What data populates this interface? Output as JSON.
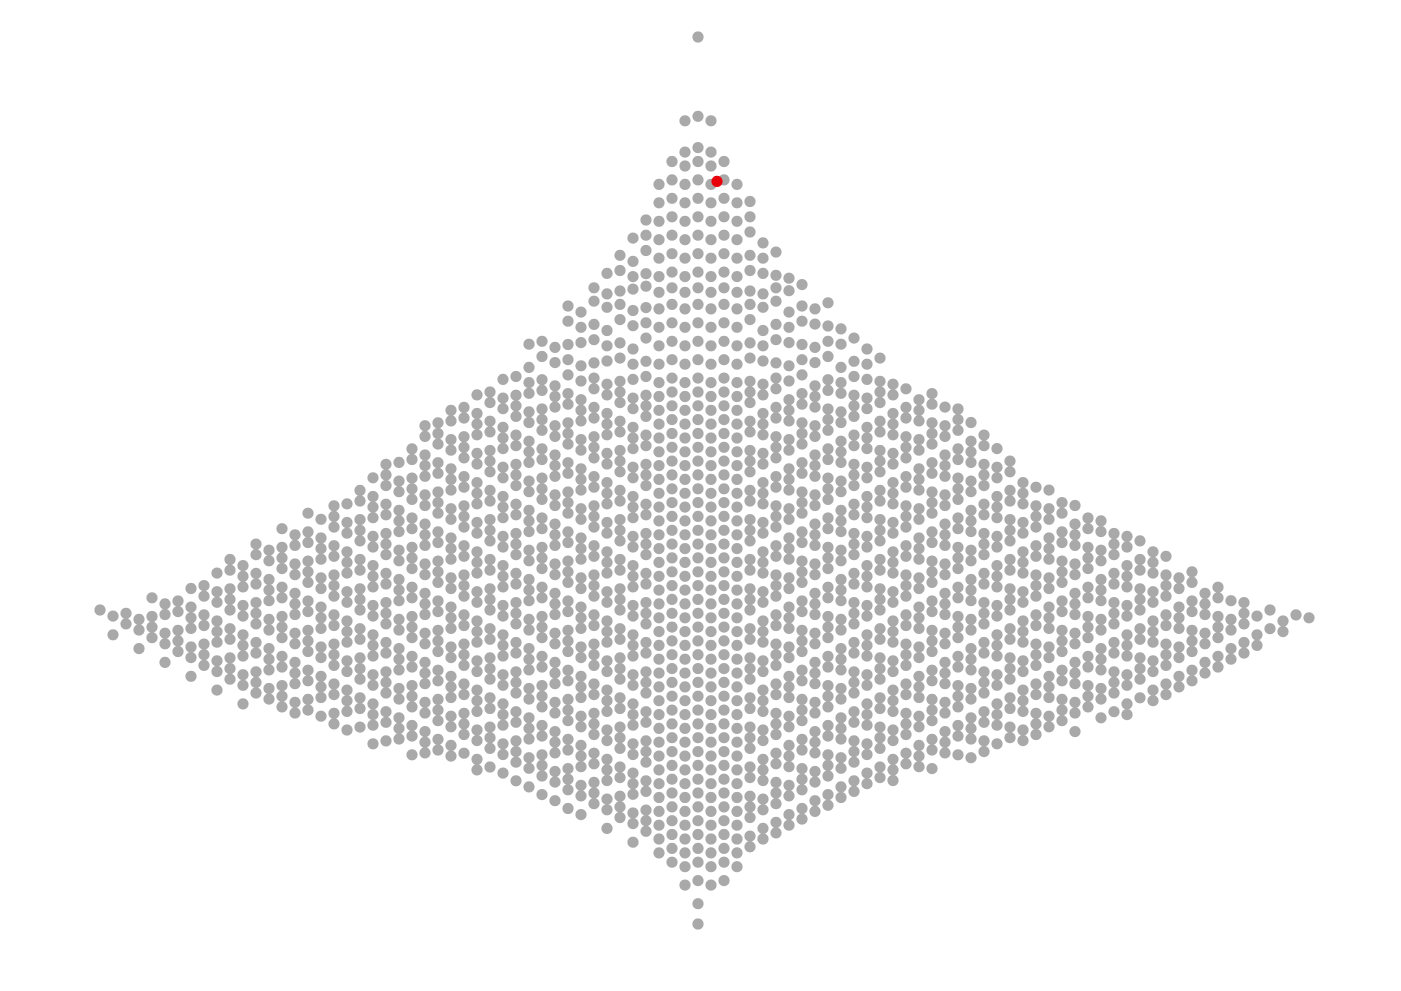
{
  "chart_data": {
    "type": "scatter",
    "subtype": "beeswarm",
    "title": "",
    "xlabel": "",
    "ylabel": "",
    "axes_visible": false,
    "grid": false,
    "legend": "none",
    "colors": {
      "points": "#a9a9a9",
      "highlight": "#e8000b"
    },
    "value_axis": "vertical",
    "value_range": [
      0,
      1
    ],
    "sampling_note_free": true,
    "bins": [
      [
        0.0,
        1
      ],
      [
        0.086,
        3
      ],
      [
        0.12,
        3
      ],
      [
        0.135,
        5
      ],
      [
        0.155,
        7
      ],
      [
        0.175,
        8
      ],
      [
        0.195,
        9
      ],
      [
        0.215,
        11
      ],
      [
        0.235,
        13
      ],
      [
        0.255,
        15
      ],
      [
        0.272,
        17
      ],
      [
        0.29,
        21
      ],
      [
        0.31,
        22
      ],
      [
        0.33,
        27
      ],
      [
        0.35,
        28
      ],
      [
        0.37,
        31
      ],
      [
        0.385,
        36
      ],
      [
        0.4,
        40
      ],
      [
        0.415,
        43
      ],
      [
        0.43,
        44
      ],
      [
        0.445,
        46
      ],
      [
        0.46,
        49
      ],
      [
        0.475,
        51
      ],
      [
        0.49,
        54
      ],
      [
        0.505,
        58
      ],
      [
        0.52,
        62
      ],
      [
        0.535,
        66
      ],
      [
        0.55,
        70
      ],
      [
        0.565,
        73
      ],
      [
        0.58,
        76
      ],
      [
        0.595,
        80
      ],
      [
        0.61,
        85
      ],
      [
        0.625,
        94
      ],
      [
        0.64,
        91
      ],
      [
        0.655,
        87
      ],
      [
        0.67,
        84
      ],
      [
        0.685,
        80
      ],
      [
        0.7,
        76
      ],
      [
        0.715,
        72
      ],
      [
        0.73,
        66
      ],
      [
        0.745,
        58
      ],
      [
        0.76,
        52
      ],
      [
        0.775,
        45
      ],
      [
        0.79,
        36
      ],
      [
        0.805,
        30
      ],
      [
        0.82,
        25
      ],
      [
        0.835,
        21
      ],
      [
        0.85,
        16
      ],
      [
        0.865,
        12
      ],
      [
        0.88,
        8
      ],
      [
        0.895,
        6
      ],
      [
        0.915,
        4
      ],
      [
        0.94,
        1
      ],
      [
        0.962,
        1
      ]
    ],
    "highlight_point": {
      "value": 0.155,
      "side_offset": 1
    }
  }
}
